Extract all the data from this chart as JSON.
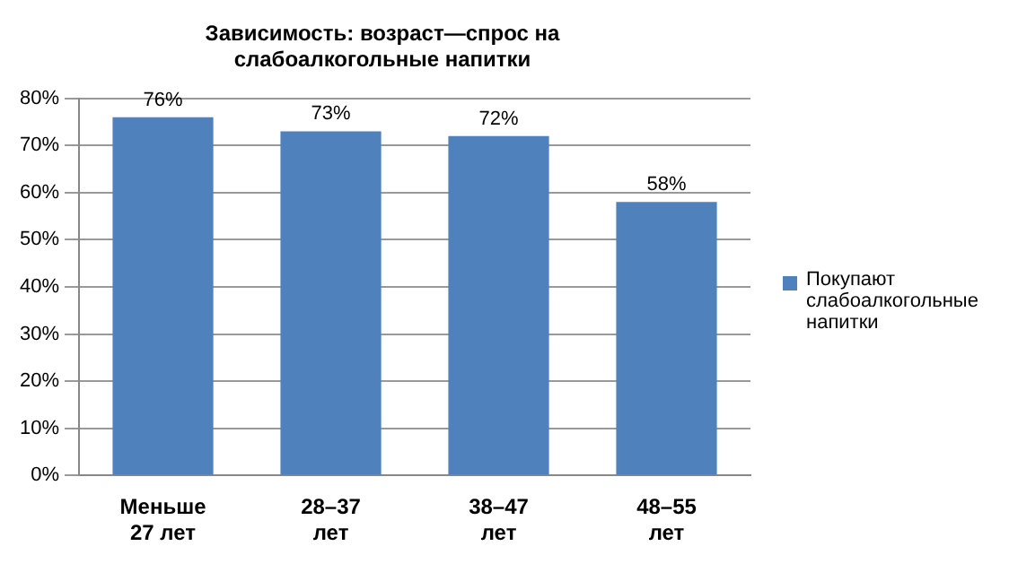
{
  "chart_data": {
    "type": "bar",
    "title": "Зависимость: возраст—спрос на слабоалкогольные напитки",
    "categories": [
      "Меньше 27 лет",
      "28–37 лет",
      "38–47 лет",
      "48–55 лет"
    ],
    "series": [
      {
        "name": "Покупают слабоалкогольные напитки",
        "color": "#4f81bd",
        "values": [
          76,
          73,
          72,
          58
        ],
        "value_labels": [
          "76%",
          "73%",
          "72%",
          "58%"
        ]
      }
    ],
    "ylim": [
      0,
      80
    ],
    "yticks": [
      {
        "value": 0,
        "label": "0%"
      },
      {
        "value": 10,
        "label": "10%"
      },
      {
        "value": 20,
        "label": "20%"
      },
      {
        "value": 30,
        "label": "30%"
      },
      {
        "value": 40,
        "label": "40%"
      },
      {
        "value": 50,
        "label": "50%"
      },
      {
        "value": 60,
        "label": "60%"
      },
      {
        "value": 70,
        "label": "70%"
      },
      {
        "value": 80,
        "label": "80%"
      }
    ],
    "grid": "y",
    "legend": "right"
  }
}
